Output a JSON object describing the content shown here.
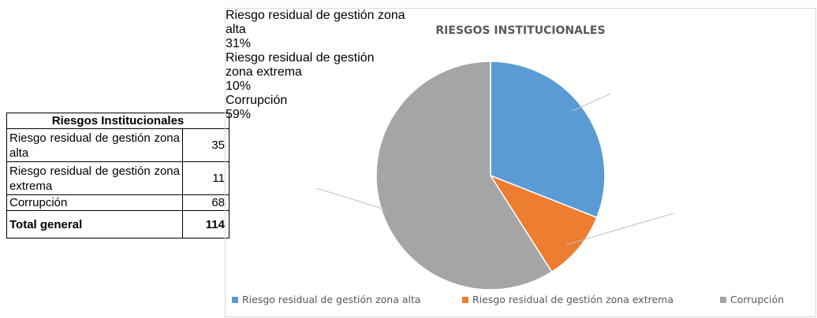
{
  "table": {
    "title": "Riesgos Institucionales",
    "rows": [
      [
        "Riesgo residual de gestión zona alta",
        35
      ],
      [
        "Riesgo residual de gestión zona extrema",
        11
      ],
      [
        "Corrupción",
        68
      ]
    ],
    "total": [
      "Total general",
      114
    ]
  },
  "chart_data": {
    "type": "pie",
    "title": "RIESGOS INSTITUCIONALES",
    "categories": [
      "Riesgo residual de gestión zona alta",
      "Riesgo residual de gestión zona extrema",
      "Corrupción"
    ],
    "values": [
      31,
      10,
      59
    ],
    "value_labels": [
      "31%",
      "10%",
      "59%"
    ],
    "colors": [
      "#5b9bd5",
      "#ed7d31",
      "#a5a5a5"
    ],
    "legend": "bottom"
  }
}
